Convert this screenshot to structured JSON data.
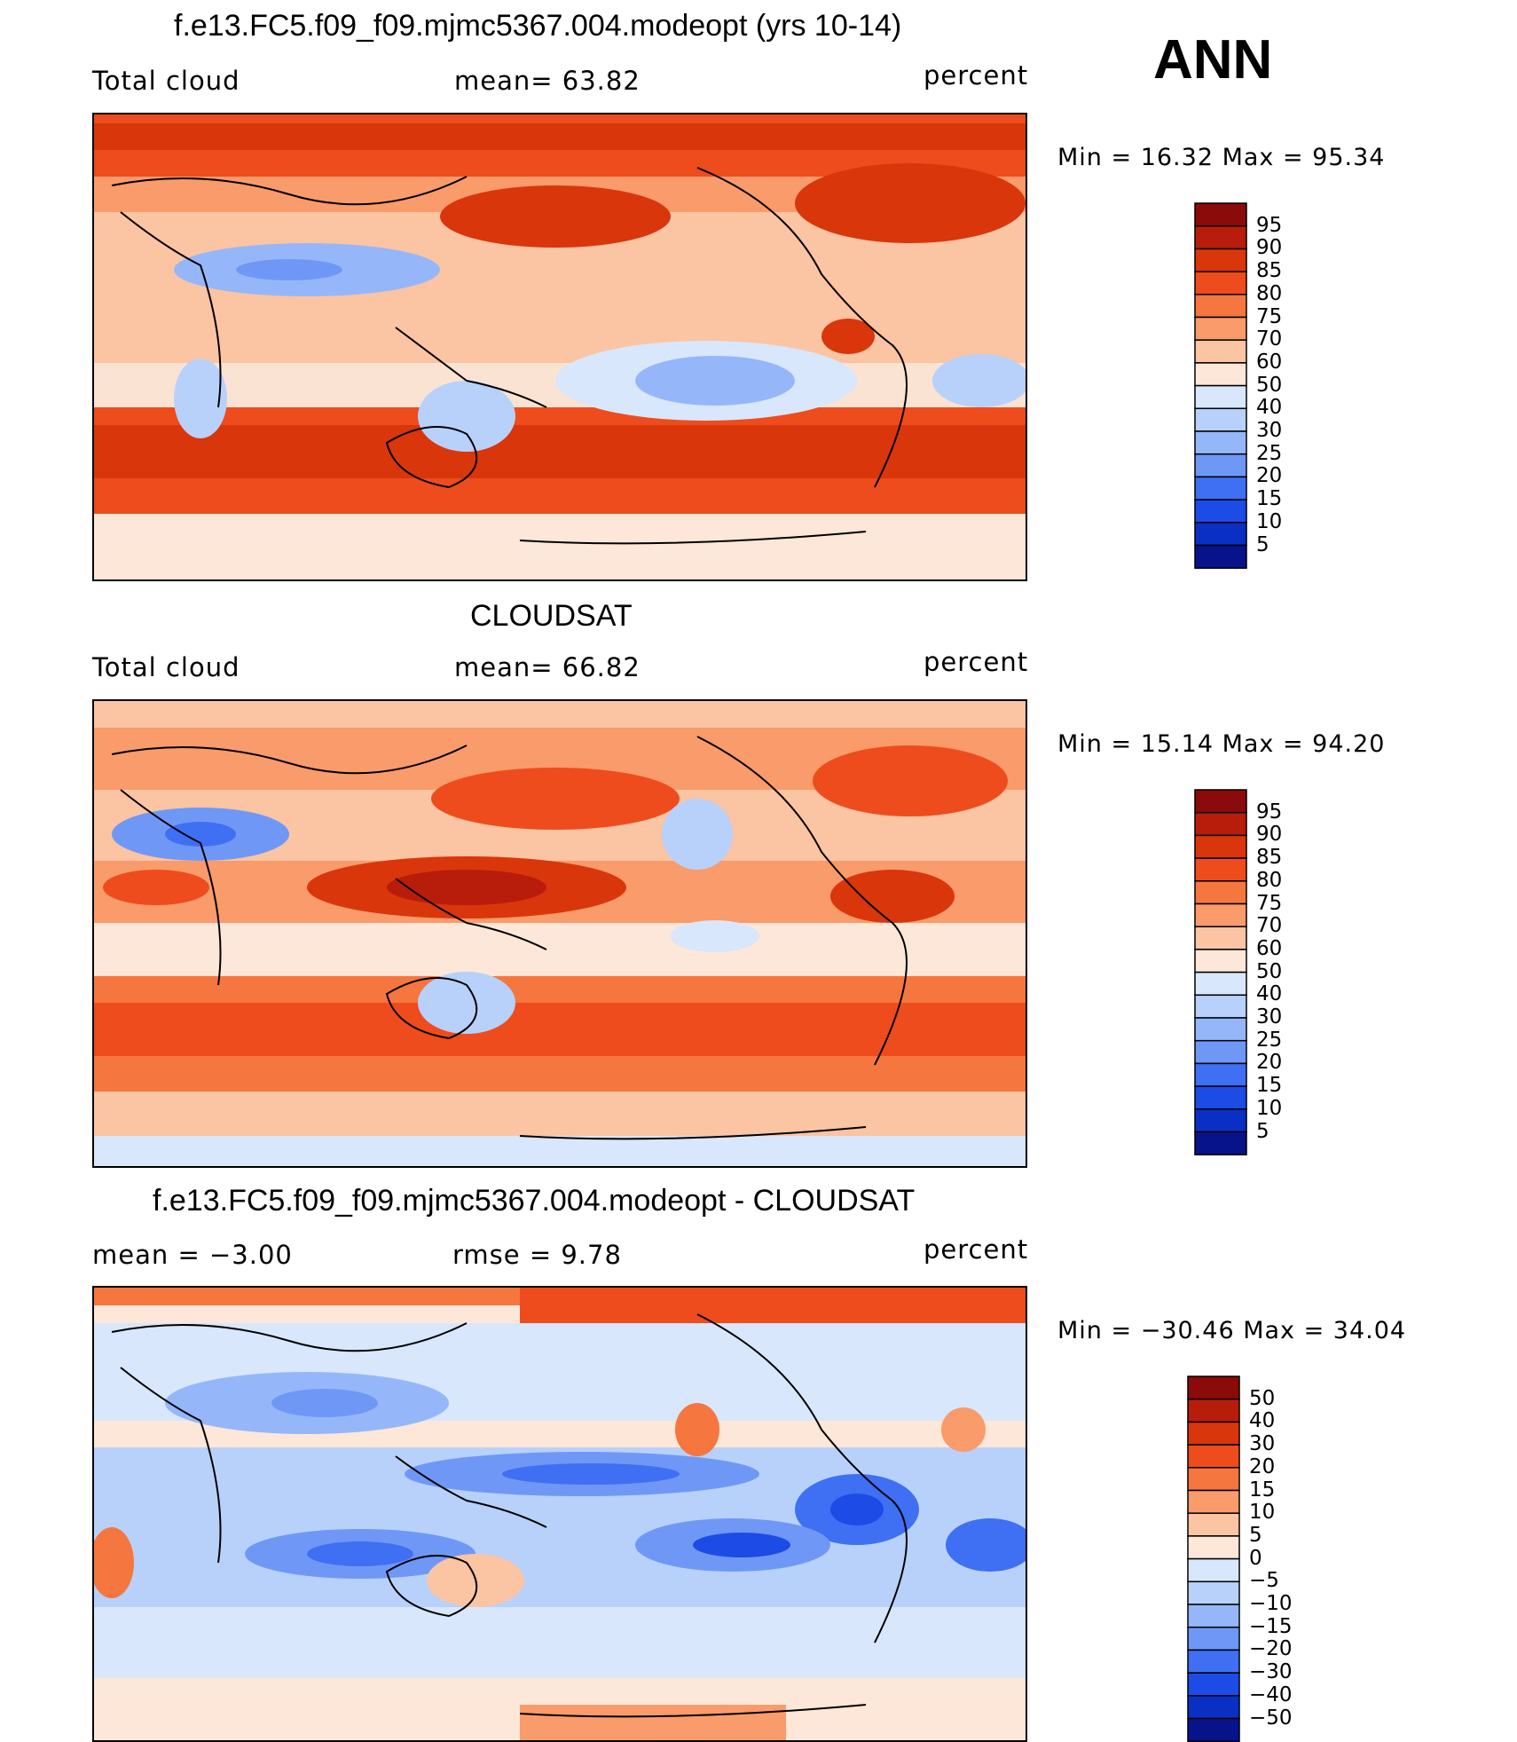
{
  "season": "ANN",
  "panels": [
    {
      "title": "f.e13.FC5.f09_f09.mjmc5367.004.modeopt (yrs 10-14)",
      "left_label": "Total cloud",
      "center_label": "mean=   63.82",
      "units": "percent",
      "minmax": "Min  =    16.32  Max  =    95.34",
      "colorbar": {
        "labels": [
          "95",
          "90",
          "85",
          "80",
          "75",
          "70",
          "60",
          "50",
          "40",
          "30",
          "25",
          "20",
          "15",
          "10",
          "5"
        ],
        "colors": [
          "#8b0a0a",
          "#b81d0b",
          "#d9360c",
          "#ee4c1d",
          "#f6763f",
          "#f99b6b",
          "#fbc4a3",
          "#fde7d8",
          "#d8e7fb",
          "#b8d1fb",
          "#95b7fa",
          "#6f98f6",
          "#3f6ff3",
          "#1c4be6",
          "#0a2fc4",
          "#07138a"
        ]
      }
    },
    {
      "title": "CLOUDSAT",
      "left_label": "Total cloud",
      "center_label": "mean=   66.82",
      "units": "percent",
      "minmax": "Min  =    15.14  Max  =    94.20",
      "colorbar": {
        "labels": [
          "95",
          "90",
          "85",
          "80",
          "75",
          "70",
          "60",
          "50",
          "40",
          "30",
          "25",
          "20",
          "15",
          "10",
          "5"
        ],
        "colors": [
          "#8b0a0a",
          "#b81d0b",
          "#d9360c",
          "#ee4c1d",
          "#f6763f",
          "#f99b6b",
          "#fbc4a3",
          "#fde7d8",
          "#d8e7fb",
          "#b8d1fb",
          "#95b7fa",
          "#6f98f6",
          "#3f6ff3",
          "#1c4be6",
          "#0a2fc4",
          "#07138a"
        ]
      }
    },
    {
      "title": "f.e13.FC5.f09_f09.mjmc5367.004.modeopt - CLOUDSAT",
      "left_label": "mean  =    −3.00",
      "center_label": "rmse  =     9.78",
      "units": "percent",
      "minmax": "Min  = −30.46  Max  =    34.04",
      "colorbar": {
        "labels": [
          "50",
          "40",
          "30",
          "20",
          "15",
          "10",
          "5",
          "0",
          "−5",
          "−10",
          "−15",
          "−20",
          "−30",
          "−40",
          "−50"
        ],
        "colors": [
          "#8b0a0a",
          "#b81d0b",
          "#d9360c",
          "#ee4c1d",
          "#f6763f",
          "#f99b6b",
          "#fbc4a3",
          "#fde7d8",
          "#d8e7fb",
          "#b8d1fb",
          "#95b7fa",
          "#6f98f6",
          "#3f6ff3",
          "#1c4be6",
          "#0a2fc4",
          "#07138a"
        ]
      }
    }
  ]
}
